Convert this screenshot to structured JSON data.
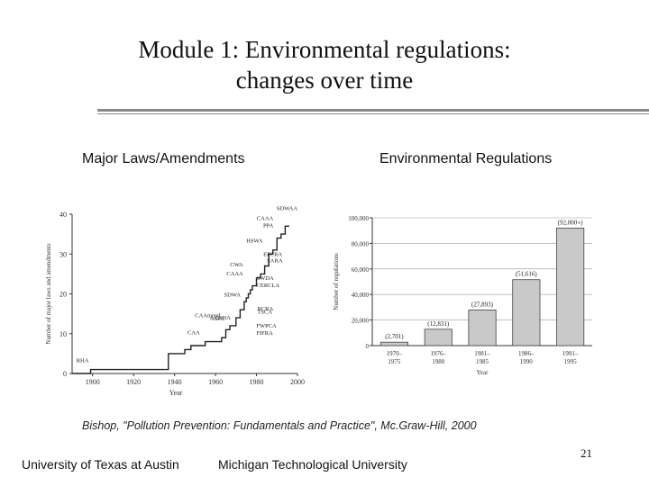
{
  "title_line1": "Module 1: Environmental regulations:",
  "title_line2": "changes over time",
  "left_header": "Major Laws/Amendments",
  "right_header": "Environmental Regulations",
  "citation": "Bishop, \"Pollution Prevention: Fundamentals and Practice\", Mc.Graw-Hill, 2000",
  "footer_left": "University of Texas at Austin",
  "footer_center": "Michigan Technological University",
  "page_number": "21",
  "chart_data": [
    {
      "type": "line",
      "title": "Major Laws/Amendments",
      "xlabel": "Year",
      "ylabel": "Number of major laws and amendments",
      "xlim": [
        1890,
        2000
      ],
      "ylim": [
        0,
        40
      ],
      "xticks": [
        1900,
        1920,
        1940,
        1960,
        1980,
        2000
      ],
      "yticks": [
        0,
        10,
        20,
        30,
        40
      ],
      "x": [
        1890,
        1899,
        1899,
        1937,
        1937,
        1945,
        1945,
        1948,
        1948,
        1955,
        1955,
        1963,
        1963,
        1965,
        1965,
        1967,
        1967,
        1970,
        1970,
        1972,
        1972,
        1974,
        1974,
        1975,
        1975,
        1976,
        1976,
        1977,
        1977,
        1978,
        1978,
        1980,
        1980,
        1982,
        1982,
        1984,
        1984,
        1986,
        1986,
        1988,
        1988,
        1990,
        1990,
        1992,
        1992,
        1994,
        1994,
        1996
      ],
      "y": [
        0,
        0,
        1,
        1,
        5,
        5,
        6,
        6,
        7,
        7,
        8,
        8,
        9,
        9,
        11,
        11,
        12,
        12,
        14,
        14,
        16,
        16,
        18,
        18,
        19,
        19,
        20,
        20,
        21,
        21,
        22,
        22,
        24,
        24,
        25,
        25,
        27,
        27,
        30,
        30,
        31,
        31,
        34,
        34,
        35,
        35,
        37,
        37
      ],
      "annotations": [
        {
          "label": "RHA",
          "x": 1899,
          "y": 1
        },
        {
          "label": "CAA",
          "x": 1955,
          "y": 8
        },
        {
          "label": "CAAmend",
          "x": 1965,
          "y": 11
        },
        {
          "label": "NSPA",
          "x": 1967,
          "y": 12
        },
        {
          "label": "OSHA",
          "x": 1970,
          "y": 14
        },
        {
          "label": "SDWA",
          "x": 1974,
          "y": 18
        },
        {
          "label": "CWA",
          "x": 1977,
          "y": 21
        },
        {
          "label": "CAAA",
          "x": 1977,
          "y": 21
        },
        {
          "label": "FWPCA",
          "x": 1972,
          "y": 16
        },
        {
          "label": "FIFRA",
          "x": 1972,
          "y": 16
        },
        {
          "label": "RCRA",
          "x": 1976,
          "y": 19
        },
        {
          "label": "TSCA",
          "x": 1976,
          "y": 20
        },
        {
          "label": "SWDA",
          "x": 1980,
          "y": 24
        },
        {
          "label": "CERCLA",
          "x": 1980,
          "y": 24
        },
        {
          "label": "SARA",
          "x": 1986,
          "y": 27
        },
        {
          "label": "EPCRA",
          "x": 1986,
          "y": 30
        },
        {
          "label": "HSWA",
          "x": 1984,
          "y": 27
        },
        {
          "label": "CAAA",
          "x": 1990,
          "y": 34
        },
        {
          "label": "PPA",
          "x": 1990,
          "y": 34
        },
        {
          "label": "SDWAA",
          "x": 1996,
          "y": 37
        }
      ]
    },
    {
      "type": "bar",
      "title": "Environmental Regulations",
      "xlabel": "Year",
      "ylabel": "Number of regulations",
      "categories": [
        "1970–1975",
        "1976–1980",
        "1981–1985",
        "1986–1990",
        "1991–1995"
      ],
      "values": [
        2701,
        12831,
        27893,
        51616,
        92000
      ],
      "data_labels": [
        "(2,701)",
        "(12,831)",
        "(27,893)",
        "(51,616)",
        "(92,000+)"
      ],
      "ylim": [
        0,
        100000
      ],
      "yticks": [
        0,
        20000,
        40000,
        60000,
        80000,
        100000
      ],
      "ytick_labels": [
        "0",
        "20,000",
        "40,000",
        "60,000",
        "80,000",
        "100,000"
      ]
    }
  ]
}
